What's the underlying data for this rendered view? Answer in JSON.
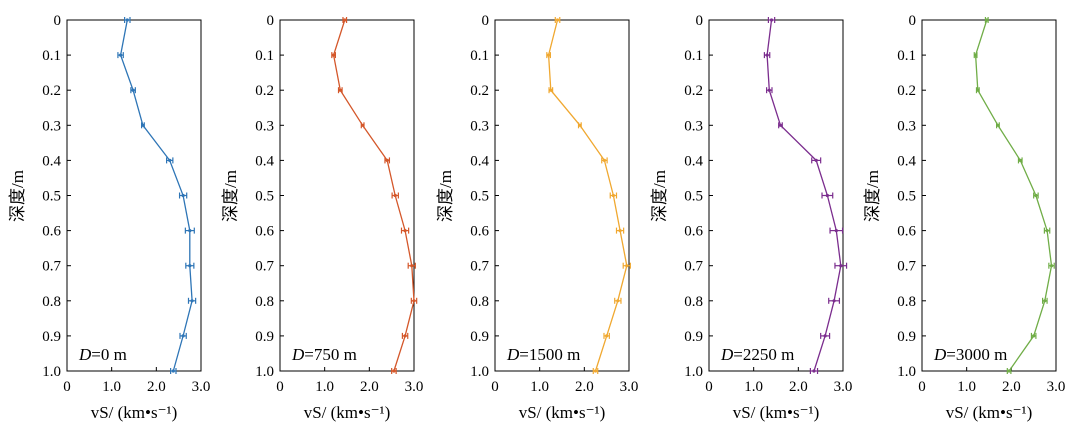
{
  "chart_data": [
    {
      "type": "line",
      "label_prefix": "D",
      "label_value": "=0 m",
      "color": "#2e75b6",
      "xlabel": "vS/ (km•s⁻¹)",
      "ylabel": "深度/m",
      "xlim": [
        0,
        3.0
      ],
      "ylim": [
        1.0,
        0
      ],
      "x_ticks": [
        "0",
        "1.0",
        "2.0",
        "3.0"
      ],
      "y_ticks": [
        "0",
        "0.1",
        "0.2",
        "0.3",
        "0.4",
        "0.5",
        "0.6",
        "0.7",
        "0.8",
        "0.9",
        "1.0"
      ],
      "depth": [
        0,
        0.1,
        0.2,
        0.3,
        0.4,
        0.5,
        0.6,
        0.7,
        0.8,
        0.9,
        1.0
      ],
      "vs": [
        1.35,
        1.2,
        1.48,
        1.7,
        2.3,
        2.6,
        2.75,
        2.75,
        2.8,
        2.6,
        2.38
      ],
      "err": [
        0.06,
        0.06,
        0.05,
        0.03,
        0.07,
        0.08,
        0.1,
        0.09,
        0.08,
        0.07,
        0.06
      ]
    },
    {
      "type": "line",
      "label_prefix": "D",
      "label_value": "=750 m",
      "color": "#d4572a",
      "xlabel": "vS/ (km•s⁻¹)",
      "ylabel": "深度/m",
      "xlim": [
        0,
        3.0
      ],
      "ylim": [
        1.0,
        0
      ],
      "x_ticks": [
        "0",
        "1.0",
        "2.0",
        "3.0"
      ],
      "y_ticks": [
        "0",
        "0.1",
        "0.2",
        "0.3",
        "0.4",
        "0.5",
        "0.6",
        "0.7",
        "0.8",
        "0.9",
        "1.0"
      ],
      "depth": [
        0,
        0.1,
        0.2,
        0.3,
        0.4,
        0.5,
        0.6,
        0.7,
        0.8,
        0.9,
        1.0
      ],
      "vs": [
        1.45,
        1.2,
        1.35,
        1.85,
        2.4,
        2.58,
        2.8,
        2.95,
        3.0,
        2.8,
        2.55
      ],
      "err": [
        0.04,
        0.04,
        0.04,
        0.03,
        0.05,
        0.07,
        0.08,
        0.08,
        0.06,
        0.06,
        0.05
      ]
    },
    {
      "type": "line",
      "label_prefix": "D",
      "label_value": "=1500 m",
      "color": "#f0a830",
      "xlabel": "vS/ (km•s⁻¹)",
      "ylabel": "深度/m",
      "xlim": [
        0,
        3.0
      ],
      "ylim": [
        1.0,
        0
      ],
      "x_ticks": [
        "0",
        "1.0",
        "2.0",
        "3.0"
      ],
      "y_ticks": [
        "0",
        "0.1",
        "0.2",
        "0.3",
        "0.4",
        "0.5",
        "0.6",
        "0.7",
        "0.8",
        "0.9",
        "1.0"
      ],
      "depth": [
        0,
        0.1,
        0.2,
        0.3,
        0.4,
        0.5,
        0.6,
        0.7,
        0.8,
        0.9,
        1.0
      ],
      "vs": [
        1.4,
        1.2,
        1.25,
        1.9,
        2.45,
        2.65,
        2.8,
        2.95,
        2.75,
        2.5,
        2.25
      ],
      "err": [
        0.05,
        0.04,
        0.04,
        0.03,
        0.06,
        0.07,
        0.08,
        0.08,
        0.07,
        0.06,
        0.05
      ]
    },
    {
      "type": "line",
      "label_prefix": "D",
      "label_value": "=2250 m",
      "color": "#7b2d8e",
      "xlabel": "vS/ (km•s⁻¹)",
      "ylabel": "深度/m",
      "xlim": [
        0,
        3.0
      ],
      "ylim": [
        1.0,
        0
      ],
      "x_ticks": [
        "0",
        "1.0",
        "2.0",
        "3.0"
      ],
      "y_ticks": [
        "0",
        "0.1",
        "0.2",
        "0.3",
        "0.4",
        "0.5",
        "0.6",
        "0.7",
        "0.8",
        "0.9",
        "1.0"
      ],
      "depth": [
        0,
        0.1,
        0.2,
        0.3,
        0.4,
        0.5,
        0.6,
        0.7,
        0.8,
        0.9,
        1.0
      ],
      "vs": [
        1.4,
        1.3,
        1.35,
        1.6,
        2.4,
        2.65,
        2.85,
        2.95,
        2.8,
        2.6,
        2.35
      ],
      "err": [
        0.07,
        0.06,
        0.06,
        0.04,
        0.1,
        0.12,
        0.14,
        0.13,
        0.12,
        0.1,
        0.08
      ]
    },
    {
      "type": "line",
      "label_prefix": "D",
      "label_value": "=3000 m",
      "color": "#70ad47",
      "xlabel": "vS/ (km•s⁻¹)",
      "ylabel": "深度/m",
      "xlim": [
        0,
        3.0
      ],
      "ylim": [
        1.0,
        0
      ],
      "x_ticks": [
        "0",
        "1.0",
        "2.0",
        "3.0"
      ],
      "y_ticks": [
        "0",
        "0.1",
        "0.2",
        "0.3",
        "0.4",
        "0.5",
        "0.6",
        "0.7",
        "0.8",
        "0.9",
        "1.0"
      ],
      "depth": [
        0,
        0.1,
        0.2,
        0.3,
        0.4,
        0.5,
        0.6,
        0.7,
        0.8,
        0.9,
        1.0
      ],
      "vs": [
        1.45,
        1.2,
        1.25,
        1.7,
        2.2,
        2.55,
        2.8,
        2.9,
        2.75,
        2.5,
        1.95
      ],
      "err": [
        0.03,
        0.03,
        0.03,
        0.03,
        0.04,
        0.05,
        0.06,
        0.06,
        0.05,
        0.05,
        0.04
      ]
    }
  ]
}
